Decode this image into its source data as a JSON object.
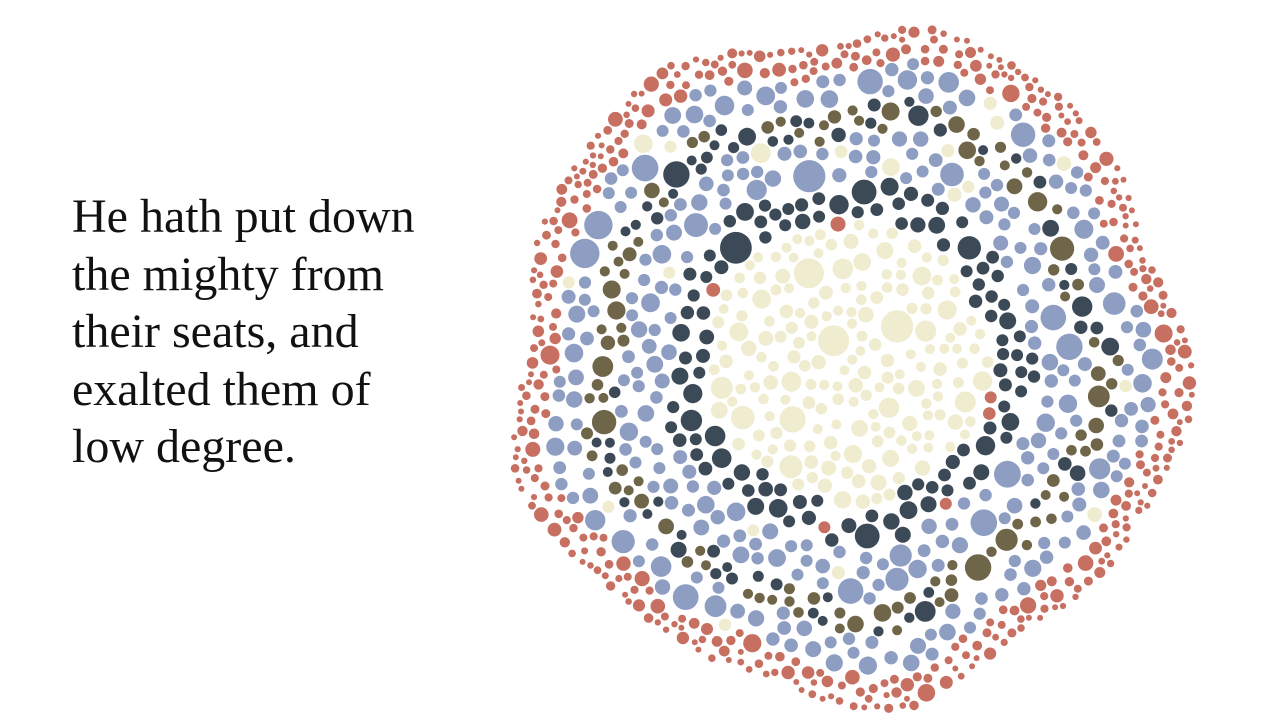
{
  "verse": {
    "lines": [
      "He hath put down",
      "the mighty from",
      "their seats, and",
      "exalted them of",
      "low degree."
    ]
  },
  "mosaic": {
    "description_icon": "circle-packing-rings-icon",
    "colors": {
      "center": "#efeccf",
      "dark": "#3c4a57",
      "blue": "#8e9dc2",
      "olive": "#6f6548",
      "red": "#c76f60"
    },
    "ring_order": [
      "center",
      "dark",
      "blue",
      "olive",
      "blue",
      "red"
    ]
  }
}
